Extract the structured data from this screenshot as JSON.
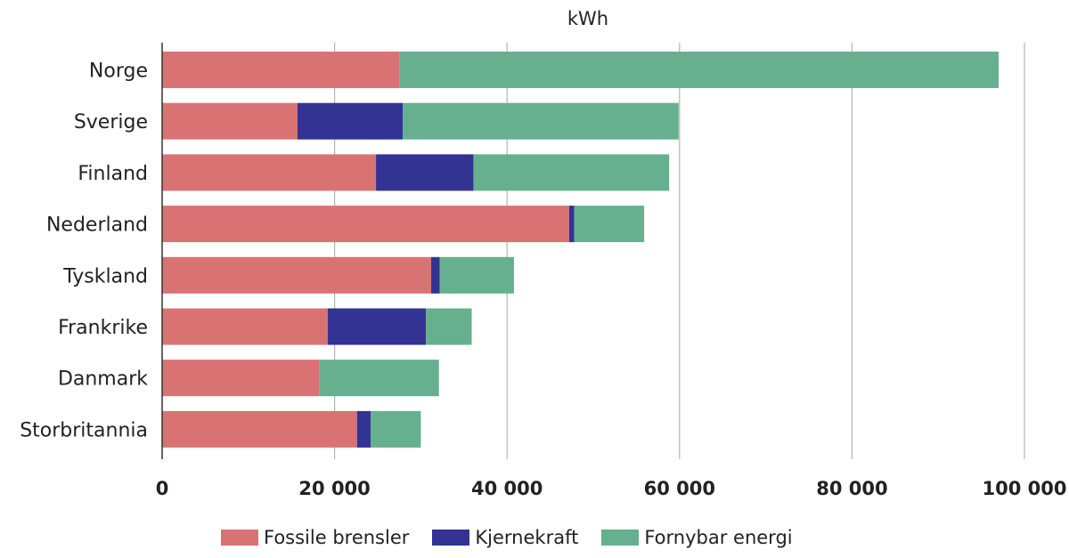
{
  "chart_data": {
    "type": "bar",
    "orientation": "horizontal",
    "stacked": true,
    "unit_label": "kWh",
    "categories": [
      "Norge",
      "Sverige",
      "Finland",
      "Nederland",
      "Tyskland",
      "Frankrike",
      "Danmark",
      "Storbritannia"
    ],
    "series": [
      {
        "name": "Fossile brensler",
        "color": "#d97373",
        "values": [
          27500,
          15700,
          24800,
          47200,
          31200,
          19200,
          18200,
          22600
        ]
      },
      {
        "name": "Kjernekraft",
        "color": "#333394",
        "values": [
          0,
          12200,
          11300,
          600,
          1000,
          11400,
          0,
          1600
        ]
      },
      {
        "name": "Fornybar energi",
        "color": "#66b08f",
        "values": [
          69500,
          32000,
          22700,
          8100,
          8600,
          5300,
          13900,
          5800
        ]
      }
    ],
    "xlim": [
      0,
      100000
    ],
    "xticks": [
      0,
      20000,
      40000,
      60000,
      80000,
      100000
    ],
    "xtick_labels": [
      "0",
      "20 000",
      "40 000",
      "60 000",
      "80 000",
      "100 000"
    ],
    "grid": "vertical",
    "legend_position": "bottom"
  }
}
